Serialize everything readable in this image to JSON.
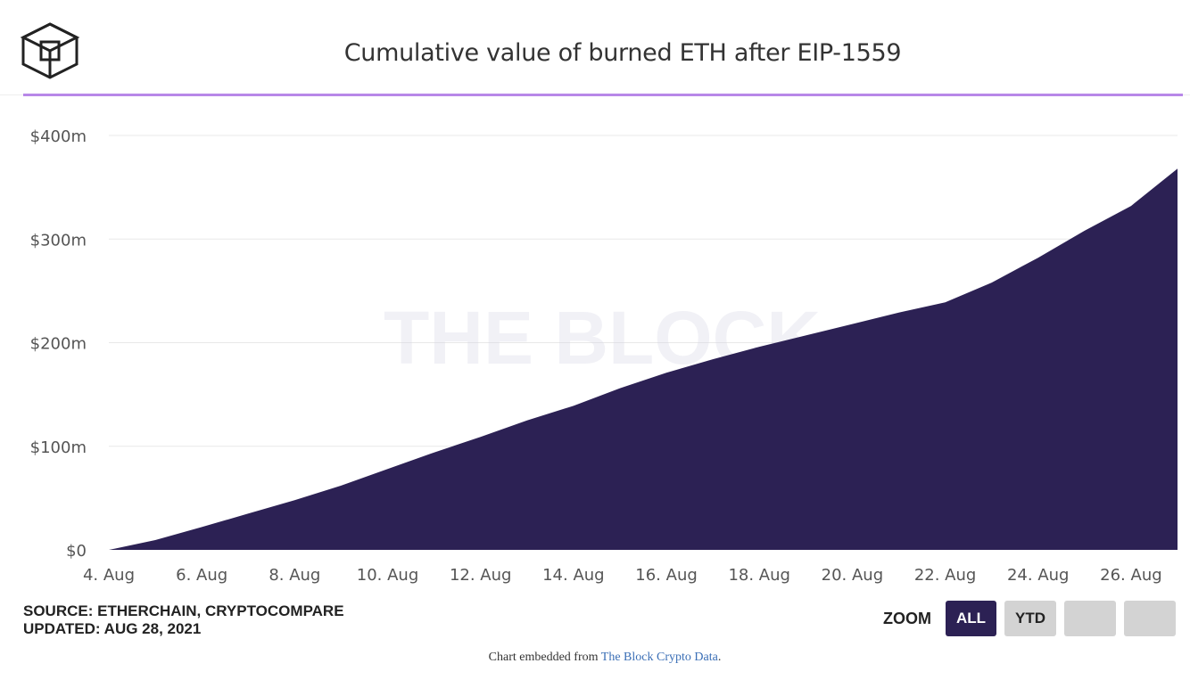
{
  "header": {
    "title": "Cumulative value of burned ETH after EIP-1559",
    "logo_icon": "the-block-cube-logo-icon",
    "accent_color": "#b888e8"
  },
  "chart_data": {
    "type": "area",
    "title": "Cumulative value of burned ETH after EIP-1559",
    "xlabel": "",
    "ylabel": "",
    "x_start": "4. Aug",
    "x_end": "27. Aug",
    "x_tick_labels": [
      "4. Aug",
      "6. Aug",
      "8. Aug",
      "10. Aug",
      "12. Aug",
      "14. Aug",
      "16. Aug",
      "18. Aug",
      "20. Aug",
      "22. Aug",
      "24. Aug",
      "26. Aug"
    ],
    "y_tick_labels": [
      "$0",
      "$100m",
      "$200m",
      "$300m",
      "$400m"
    ],
    "y_tick_values": [
      0,
      100,
      200,
      300,
      400
    ],
    "ylim": [
      0,
      400
    ],
    "y_unit": "USD millions",
    "grid": true,
    "fill_color": "#2c2154",
    "series": [
      {
        "name": "Cumulative value of burned ETH",
        "days": [
          4,
          5,
          6,
          7,
          8,
          9,
          10,
          11,
          12,
          13,
          14,
          15,
          16,
          17,
          18,
          19,
          20,
          21,
          22,
          23,
          24,
          25,
          26,
          27
        ],
        "values": [
          0,
          9.5,
          22,
          35,
          48,
          62,
          78,
          94,
          109,
          125,
          139,
          156,
          171,
          184,
          196,
          207,
          218,
          229,
          239,
          258,
          282,
          308,
          332,
          368
        ]
      }
    ],
    "watermark": "THE BLOCK"
  },
  "footer": {
    "source_line": "SOURCE: ETHERCHAIN, CRYPTOCOMPARE",
    "updated_line": "UPDATED: AUG 28, 2021",
    "zoom_label": "ZOOM",
    "zoom_buttons": {
      "all": "ALL",
      "ytd": "YTD"
    },
    "zoom_active_color": "#2c2154",
    "zoom_inactive_color": "#d3d3d3",
    "embed_prefix": "Chart embedded from ",
    "embed_link": "The Block Crypto Data",
    "embed_suffix": "."
  }
}
